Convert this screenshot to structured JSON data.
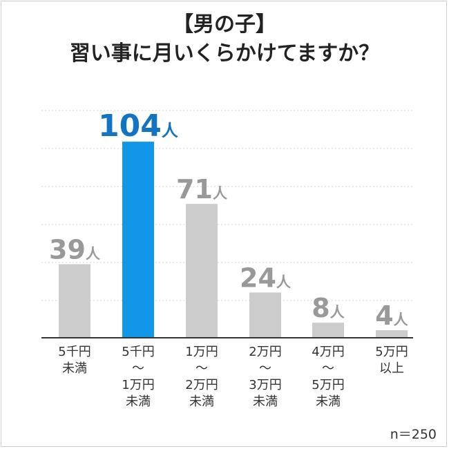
{
  "title_lines": [
    "【男の子】",
    "習い事に月いくらかけてますか？"
  ],
  "sample_size": "n＝250",
  "colors": {
    "highlight": "#1296e8",
    "highlight_label": "#1474c4",
    "bar": "#cccccc",
    "bar_label": "#999999"
  },
  "chart_data": {
    "type": "bar",
    "title": "【男の子】 習い事に月いくらかけてますか？",
    "unit": "人",
    "categories": [
      [
        "5千円",
        "未満"
      ],
      [
        "5千円",
        "〜",
        "1万円",
        "未満"
      ],
      [
        "1万円",
        "〜",
        "2万円",
        "未満"
      ],
      [
        "2万円",
        "〜",
        "3万円",
        "未満"
      ],
      [
        "4万円",
        "〜",
        "5万円",
        "未満"
      ],
      [
        "5万円",
        "以上"
      ]
    ],
    "values": [
      39,
      104,
      71,
      24,
      8,
      4
    ],
    "highlight_index": 1,
    "ylim": [
      0,
      120
    ],
    "grid": true
  }
}
